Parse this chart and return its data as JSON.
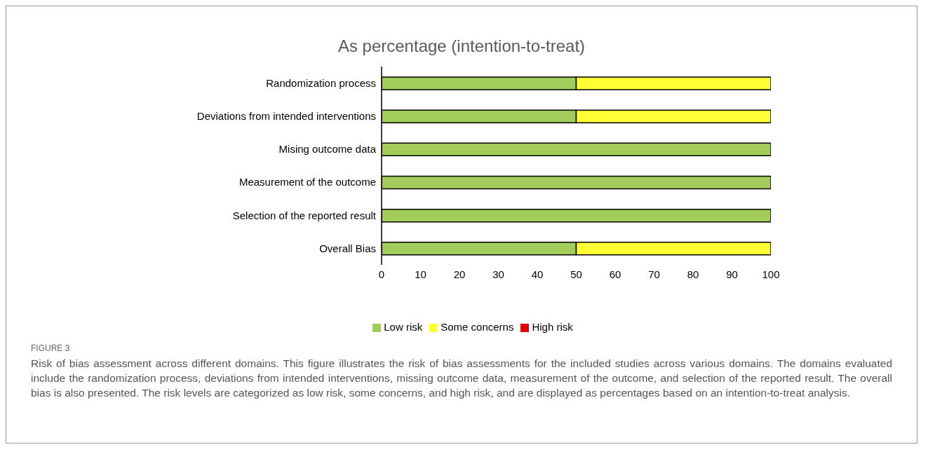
{
  "chart_data": {
    "type": "bar",
    "title": "As percentage (intention-to-treat)",
    "orientation": "horizontal",
    "stacked": true,
    "legend": "bottom",
    "categories": [
      "Randomization process",
      "Deviations from intended interventions",
      "Mising outcome data",
      "Measurement of the outcome",
      "Selection of the reported result",
      "Overall Bias"
    ],
    "series": [
      {
        "name": "Low risk",
        "color": "#a2cd5a",
        "values": [
          50,
          50,
          100,
          100,
          100,
          50
        ]
      },
      {
        "name": "Some concerns",
        "color": "#ffff33",
        "values": [
          50,
          50,
          0,
          0,
          0,
          50
        ]
      },
      {
        "name": "High risk",
        "color": "#e00000",
        "values": [
          0,
          0,
          0,
          0,
          0,
          0
        ]
      }
    ],
    "xlim": [
      0,
      100
    ],
    "xticks": [
      0,
      10,
      20,
      30,
      40,
      50,
      60,
      70,
      80,
      90,
      100
    ],
    "annotations": [
      "FIGURE 3",
      "Risk of bias assessment across different domains. This figure illustrates the risk of bias assessments for the included studies across various domains. The domains evaluated include the randomization process, deviations from intended interventions, missing outcome data, measurement of the outcome, and selection of the reported result. The overall bias is also presented. The risk levels are categorized as low risk, some concerns, and high risk, and are displayed as percentages based on an intention-to-treat analysis."
    ]
  }
}
